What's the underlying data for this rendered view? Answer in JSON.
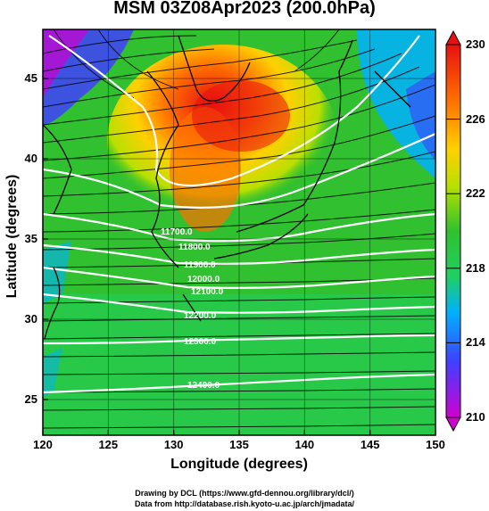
{
  "title": "MSM 03Z08Apr2023 (200.0hPa)",
  "map": {
    "xlabel": "Longitude (degrees)",
    "ylabel": "Latitude  (degrees)",
    "x_ticks": [
      "120",
      "125",
      "130",
      "135",
      "140",
      "145",
      "150"
    ],
    "y_ticks": [
      "25",
      "30",
      "35",
      "40",
      "45"
    ],
    "lon_range": [
      120,
      150
    ],
    "lat_range": [
      22.4,
      47.6
    ],
    "field": "temperature shading with wind streamlines and geopotential height contours",
    "contour_labels": [
      "11700.0",
      "11800.0",
      "11900.0",
      "12000.0",
      "12100.0",
      "12200.0",
      "12300.0",
      "12400.0"
    ]
  },
  "colorbar": {
    "ticks": [
      "230",
      "226",
      "222",
      "218",
      "214",
      "210"
    ],
    "min": 210,
    "max": 230,
    "colors": [
      "#d000d0",
      "#4040ff",
      "#00b0ff",
      "#20d060",
      "#30c030",
      "#b8e000",
      "#ffd000",
      "#ff7000",
      "#e81010"
    ]
  },
  "credits": {
    "line1": "Drawing by DCL (https://www.gfd-dennou.org/library/dcl/)",
    "line2": "Data from http://database.rish.kyoto-u.ac.jp/arch/jmadata/"
  }
}
